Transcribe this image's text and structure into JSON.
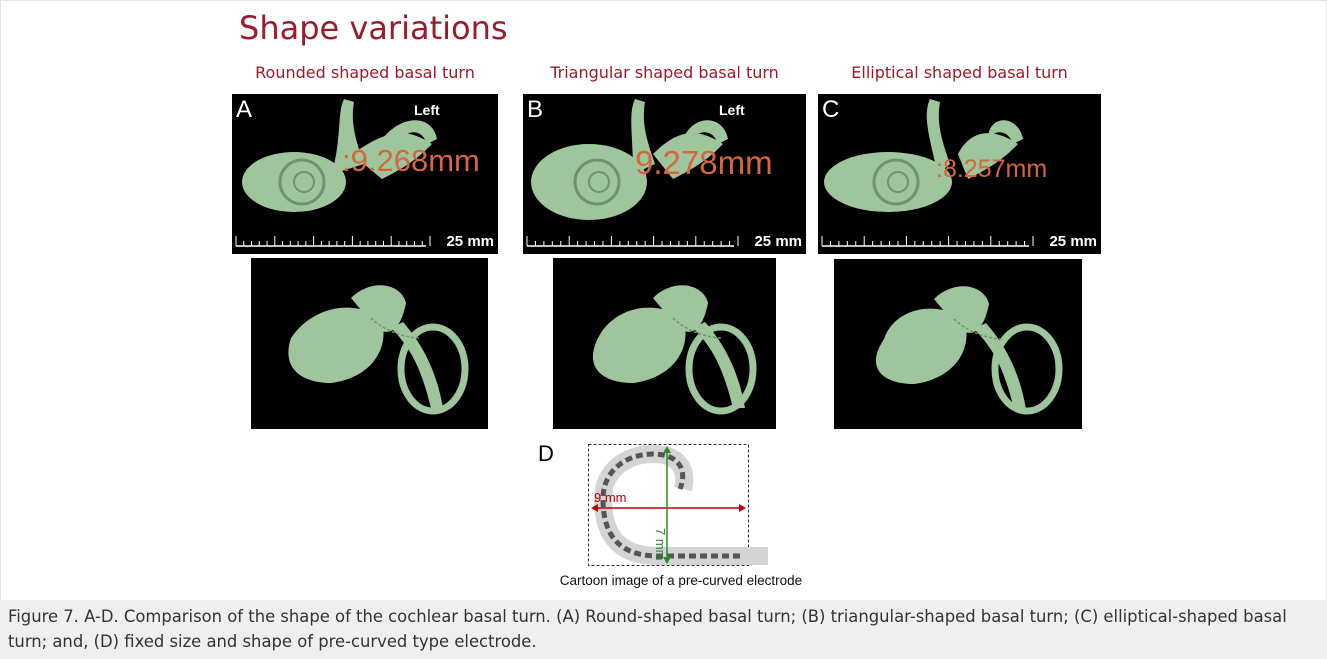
{
  "title": "Shape variations",
  "panels": [
    {
      "heading": "Rounded shaped basal turn",
      "label": "A",
      "side": "Left",
      "measurement": ":9.268mm",
      "scale": "25 mm"
    },
    {
      "heading": "Triangular shaped basal turn",
      "label": "B",
      "side": "Left",
      "measurement": "9.278mm",
      "scale": "25 mm"
    },
    {
      "heading": "Elliptical shaped basal turn",
      "label": "C",
      "measurement": ":8.257mm",
      "scale": "25 mm"
    }
  ],
  "cartoon": {
    "label": "D",
    "width_label": "9 mm",
    "height_label": "7 mm",
    "caption": "Cartoon image of a pre-curved electrode"
  },
  "figure_caption": "Figure 7. A-D.  Comparison of the shape of the cochlear basal turn. (A) Round-shaped basal turn; (B) triangular-shaped basal turn; (C) elliptical-shaped basal turn; and, (D) fixed size and shape of pre-curved type electrode."
}
